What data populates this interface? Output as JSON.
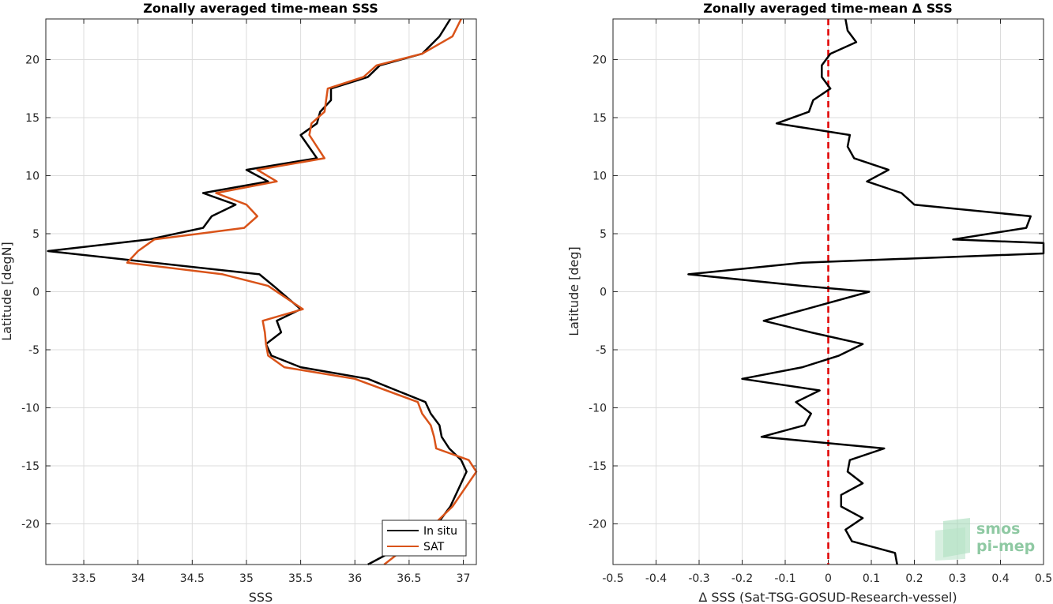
{
  "chart_data": [
    {
      "type": "line",
      "title": "Zonally averaged time-mean SSS",
      "xlabel": "SSS",
      "ylabel": "Latitude [degN]",
      "xlim": [
        33.15,
        37.12
      ],
      "ylim": [
        -23.5,
        23.5
      ],
      "xticks": [
        "33.5",
        "34",
        "34.5",
        "35",
        "35.5",
        "36",
        "36.5",
        "37"
      ],
      "yticks": [
        "-20",
        "-15",
        "-10",
        "-5",
        "0",
        "5",
        "10",
        "15",
        "20"
      ],
      "grid": true,
      "legend": {
        "position": "bottom-right"
      },
      "series": [
        {
          "name": "In situ",
          "color": "#000000",
          "points": [
            [
              36.12,
              -23.5
            ],
            [
              36.72,
              -20.5
            ],
            [
              36.88,
              -18.5
            ],
            [
              37.03,
              -15.5
            ],
            [
              36.98,
              -14.5
            ],
            [
              36.87,
              -13.5
            ],
            [
              36.8,
              -12.5
            ],
            [
              36.78,
              -11.5
            ],
            [
              36.7,
              -10.5
            ],
            [
              36.65,
              -9.5
            ],
            [
              36.12,
              -7.5
            ],
            [
              35.5,
              -6.5
            ],
            [
              35.23,
              -5.5
            ],
            [
              35.18,
              -4.5
            ],
            [
              35.32,
              -3.5
            ],
            [
              35.28,
              -2.5
            ],
            [
              35.5,
              -1.5
            ],
            [
              35.25,
              0.5
            ],
            [
              35.12,
              1.5
            ],
            [
              33.17,
              3.5
            ],
            [
              34.1,
              4.5
            ],
            [
              34.6,
              5.5
            ],
            [
              34.68,
              6.5
            ],
            [
              34.9,
              7.5
            ],
            [
              34.6,
              8.5
            ],
            [
              35.2,
              9.5
            ],
            [
              35.0,
              10.5
            ],
            [
              35.65,
              11.5
            ],
            [
              35.5,
              13.5
            ],
            [
              35.65,
              14.5
            ],
            [
              35.68,
              15.5
            ],
            [
              35.78,
              16.5
            ],
            [
              35.78,
              17.5
            ],
            [
              36.12,
              18.5
            ],
            [
              36.23,
              19.5
            ],
            [
              36.62,
              20.5
            ],
            [
              36.78,
              22.0
            ],
            [
              36.88,
              23.5
            ]
          ]
        },
        {
          "name": "SAT",
          "color": "#d95319",
          "points": [
            [
              36.27,
              -23.5
            ],
            [
              36.68,
              -20.5
            ],
            [
              36.9,
              -18.5
            ],
            [
              37.12,
              -15.5
            ],
            [
              37.05,
              -14.5
            ],
            [
              36.75,
              -13.5
            ],
            [
              36.73,
              -12.5
            ],
            [
              36.7,
              -11.5
            ],
            [
              36.62,
              -10.5
            ],
            [
              36.58,
              -9.5
            ],
            [
              36.0,
              -7.5
            ],
            [
              35.35,
              -6.5
            ],
            [
              35.2,
              -5.5
            ],
            [
              35.18,
              -4.5
            ],
            [
              35.17,
              -3.5
            ],
            [
              35.15,
              -2.5
            ],
            [
              35.52,
              -1.5
            ],
            [
              35.2,
              0.5
            ],
            [
              34.78,
              1.5
            ],
            [
              33.9,
              2.5
            ],
            [
              34.0,
              3.5
            ],
            [
              34.15,
              4.5
            ],
            [
              34.98,
              5.5
            ],
            [
              35.1,
              6.5
            ],
            [
              35.0,
              7.5
            ],
            [
              34.72,
              8.5
            ],
            [
              35.28,
              9.5
            ],
            [
              35.1,
              10.5
            ],
            [
              35.72,
              11.5
            ],
            [
              35.58,
              13.5
            ],
            [
              35.6,
              14.5
            ],
            [
              35.72,
              15.5
            ],
            [
              35.75,
              17.5
            ],
            [
              36.08,
              18.5
            ],
            [
              36.2,
              19.5
            ],
            [
              36.62,
              20.5
            ],
            [
              36.9,
              22.0
            ],
            [
              36.98,
              23.5
            ]
          ]
        }
      ]
    },
    {
      "type": "line",
      "title": "Zonally averaged time-mean Δ SSS",
      "xlabel": "Δ SSS (Sat-TSG-GOSUD-Research-vessel)",
      "ylabel": "Latitude [deg]",
      "xlim": [
        -0.5,
        0.5
      ],
      "ylim": [
        -23.5,
        23.5
      ],
      "xticks": [
        "-0.5",
        "-0.4",
        "-0.3",
        "-0.2",
        "-0.1",
        "0",
        "0.1",
        "0.2",
        "0.3",
        "0.4",
        "0.5"
      ],
      "yticks": [
        "-20",
        "-15",
        "-10",
        "-5",
        "0",
        "5",
        "10",
        "15",
        "20"
      ],
      "grid": true,
      "reference_line": {
        "x": 0,
        "color": "#e00000",
        "style": "dashed"
      },
      "series": [
        {
          "color": "#000000",
          "points": [
            [
              0.16,
              -23.5
            ],
            [
              0.155,
              -22.5
            ],
            [
              0.055,
              -21.5
            ],
            [
              0.04,
              -20.5
            ],
            [
              0.08,
              -19.5
            ],
            [
              0.03,
              -18.5
            ],
            [
              0.03,
              -17.5
            ],
            [
              0.08,
              -16.5
            ],
            [
              0.045,
              -15.5
            ],
            [
              0.05,
              -14.5
            ],
            [
              0.13,
              -13.5
            ],
            [
              -0.155,
              -12.5
            ],
            [
              -0.055,
              -11.5
            ],
            [
              -0.04,
              -10.5
            ],
            [
              -0.075,
              -9.5
            ],
            [
              -0.02,
              -8.5
            ],
            [
              -0.2,
              -7.5
            ],
            [
              -0.06,
              -6.5
            ],
            [
              0.025,
              -5.5
            ],
            [
              0.08,
              -4.5
            ],
            [
              -0.04,
              -3.5
            ],
            [
              -0.15,
              -2.5
            ],
            [
              0.095,
              0
            ],
            [
              -0.06,
              0.5
            ],
            [
              -0.325,
              1.5
            ],
            [
              -0.06,
              2.5
            ],
            [
              0.5,
              3.3
            ],
            [
              0.5,
              4.2
            ],
            [
              0.29,
              4.5
            ],
            [
              0.46,
              5.5
            ],
            [
              0.47,
              6.5
            ],
            [
              0.2,
              7.5
            ],
            [
              0.17,
              8.5
            ],
            [
              0.09,
              9.5
            ],
            [
              0.14,
              10.5
            ],
            [
              0.06,
              11.5
            ],
            [
              0.045,
              12.5
            ],
            [
              0.05,
              13.5
            ],
            [
              -0.12,
              14.5
            ],
            [
              -0.045,
              15.5
            ],
            [
              -0.035,
              16.5
            ],
            [
              0.005,
              17.5
            ],
            [
              -0.015,
              18.5
            ],
            [
              -0.015,
              19.5
            ],
            [
              0.005,
              20.5
            ],
            [
              0.065,
              21.5
            ],
            [
              0.045,
              22.5
            ],
            [
              0.04,
              23.5
            ]
          ]
        }
      ]
    }
  ],
  "logo": {
    "line1": "smos",
    "line2": "pi-mep"
  }
}
